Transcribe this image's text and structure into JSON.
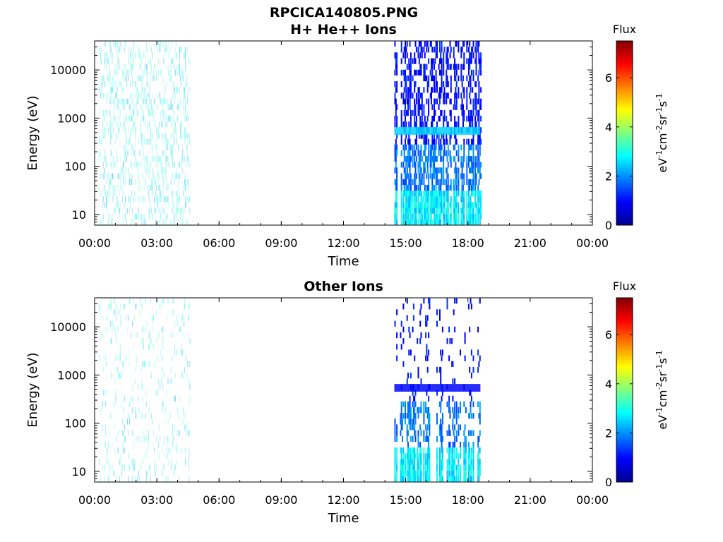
{
  "figure": {
    "title": "RPCICA140805.PNG"
  },
  "chart_data": [
    {
      "type": "heatmap",
      "title": "H+ He++ Ions",
      "xlabel": "Time",
      "ylabel": "Energy (eV)",
      "y_scale": "log",
      "ylim": [
        6,
        40000
      ],
      "x_tick_labels": [
        "00:00",
        "03:00",
        "06:00",
        "09:00",
        "12:00",
        "15:00",
        "18:00",
        "21:00",
        "00:00"
      ],
      "y_tick_labels": [
        "10",
        "100",
        "1000",
        "10000"
      ],
      "y_tick_values": [
        10,
        100,
        1000,
        10000
      ],
      "colorbar": {
        "title": "Flux",
        "label": "eV-1cm-2sr-1s-1",
        "range": [
          0,
          7.5
        ],
        "tick_labels": [
          "0",
          "2",
          "4",
          "6"
        ],
        "tick_values": [
          0,
          2,
          4,
          6
        ],
        "colormap": "jet"
      },
      "data_intervals_hours": [
        [
          0.2,
          4.6
        ],
        [
          14.45,
          18.6
        ]
      ],
      "notable_features": [
        {
          "time_hours": [
            14.45,
            18.6
          ],
          "energy_ev": [
            450,
            650
          ],
          "flux": 2.5
        }
      ]
    },
    {
      "type": "heatmap",
      "title": "Other Ions",
      "xlabel": "Time",
      "ylabel": "Energy (eV)",
      "y_scale": "log",
      "ylim": [
        6,
        40000
      ],
      "x_tick_labels": [
        "00:00",
        "03:00",
        "06:00",
        "09:00",
        "12:00",
        "15:00",
        "18:00",
        "21:00",
        "00:00"
      ],
      "y_tick_labels": [
        "10",
        "100",
        "1000",
        "10000"
      ],
      "y_tick_values": [
        10,
        100,
        1000,
        10000
      ],
      "colorbar": {
        "title": "Flux",
        "label": "eV-1cm-2sr-1s-1",
        "range": [
          0,
          7.5
        ],
        "tick_labels": [
          "0",
          "2",
          "4",
          "6"
        ],
        "tick_values": [
          0,
          2,
          4,
          6
        ],
        "colormap": "jet"
      },
      "data_intervals_hours": [
        [
          0.2,
          4.6
        ],
        [
          14.45,
          18.6
        ]
      ],
      "notable_features": [
        {
          "time_hours": [
            14.45,
            18.6
          ],
          "energy_ev": [
            450,
            650
          ],
          "flux": 1.0
        }
      ]
    }
  ]
}
